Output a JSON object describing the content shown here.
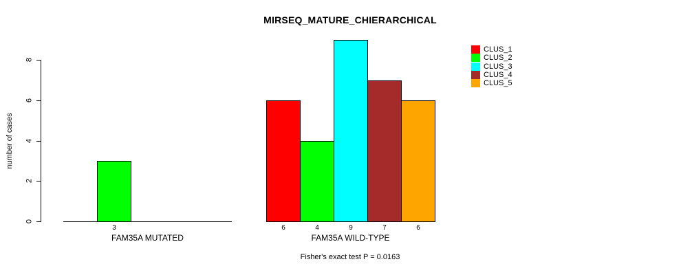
{
  "chart_data": {
    "type": "bar",
    "title": "MIRSEQ_MATURE_CHIERARCHICAL",
    "ylabel": "number of cases",
    "xlabel": "",
    "ylim": [
      0,
      9
    ],
    "yticks": [
      0,
      2,
      4,
      6,
      8
    ],
    "grid": false,
    "legend_position": "top-right",
    "categories": [
      "FAM35A MUTATED",
      "FAM35A WILD-TYPE"
    ],
    "series": [
      {
        "name": "CLUS_1",
        "color": "#FF0000",
        "values": [
          0,
          6
        ]
      },
      {
        "name": "CLUS_2",
        "color": "#00FF00",
        "values": [
          3,
          4
        ]
      },
      {
        "name": "CLUS_3",
        "color": "#00FFFF",
        "values": [
          0,
          9
        ]
      },
      {
        "name": "CLUS_4",
        "color": "#A52A2A",
        "values": [
          0,
          7
        ]
      },
      {
        "name": "CLUS_5",
        "color": "#FFA500",
        "values": [
          0,
          6
        ]
      }
    ],
    "bar_value_labels_rule": "nonzero values printed under each bar",
    "footnote": "Fisher's exact test P = 0.0163"
  },
  "colors": {
    "background": "#FFFFFF",
    "axis": "#000000",
    "text": "#000000"
  }
}
